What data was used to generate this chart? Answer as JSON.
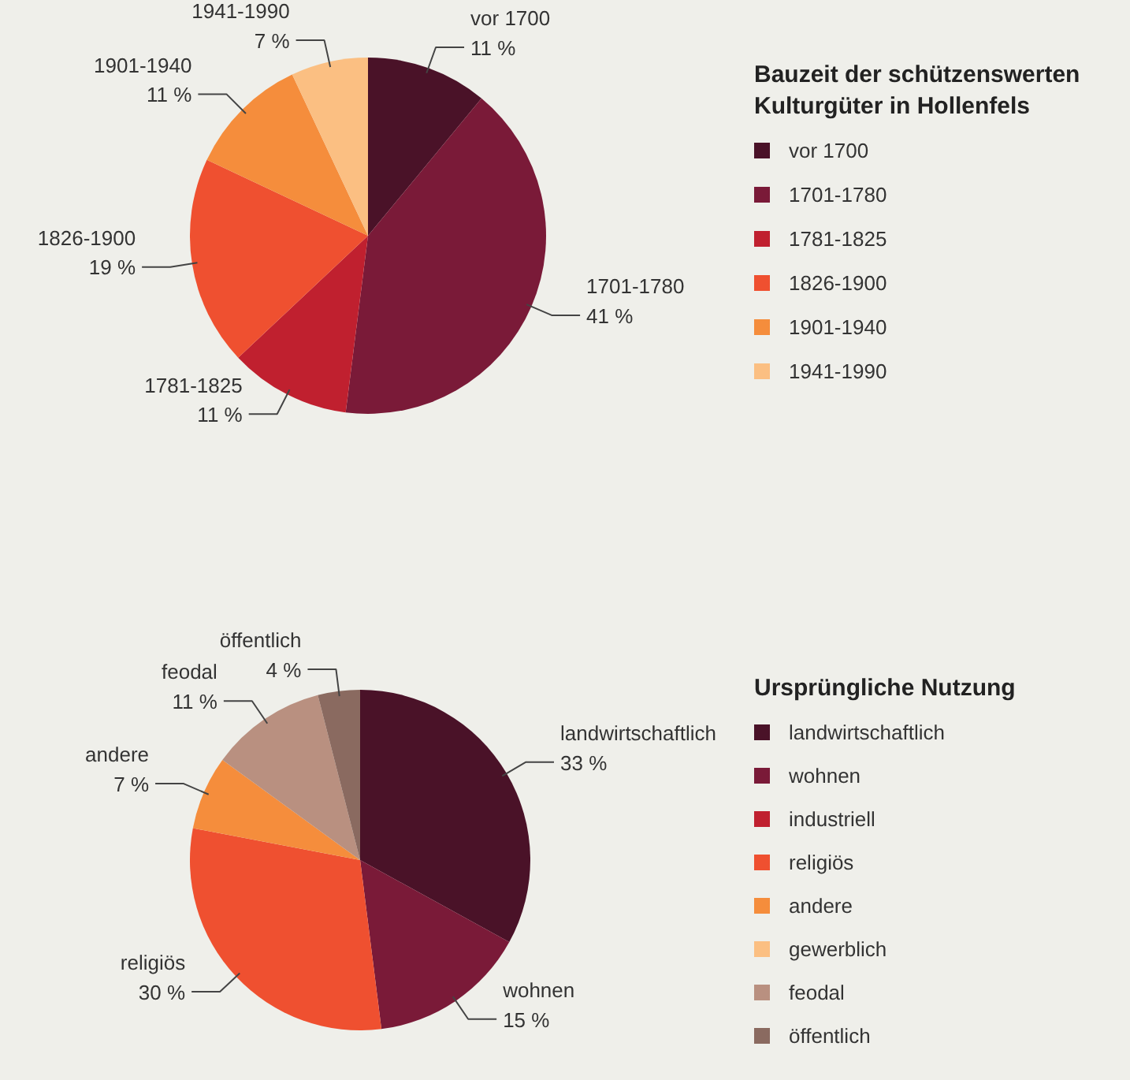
{
  "chart_data": [
    {
      "type": "pie",
      "legend_title": "Bauzeit der schützenswerten Kulturgüter in Hollenfels",
      "legend": "right",
      "categories": [
        "vor 1700",
        "1701-1780",
        "1781-1825",
        "1826-1900",
        "1901-1940",
        "1941-1990"
      ],
      "values": [
        11,
        41,
        11,
        19,
        11,
        7
      ],
      "value_labels": [
        "11 %",
        "41 %",
        "11 %",
        "19 %",
        "11 %",
        "7 %"
      ],
      "colors": [
        "#4a1228",
        "#7a1a38",
        "#c0202f",
        "#ef5030",
        "#f58d3c",
        "#fbbf82"
      ]
    },
    {
      "type": "pie",
      "legend_title": "Ursprüngliche Nutzung",
      "legend": "right",
      "categories": [
        "landwirtschaftlich",
        "wohnen",
        "industriell",
        "religiös",
        "andere",
        "gewerblich",
        "feodal",
        "öffentlich"
      ],
      "values": [
        33,
        15,
        0,
        30,
        7,
        0,
        11,
        4
      ],
      "value_labels": [
        "33 %",
        "15 %",
        null,
        "30 %",
        "7 %",
        null,
        "11 %",
        "4 %"
      ],
      "colors": [
        "#4a1228",
        "#7a1a38",
        "#c0202f",
        "#ef5030",
        "#f58d3c",
        "#fbbf82",
        "#b99080",
        "#8a6a60"
      ]
    }
  ]
}
